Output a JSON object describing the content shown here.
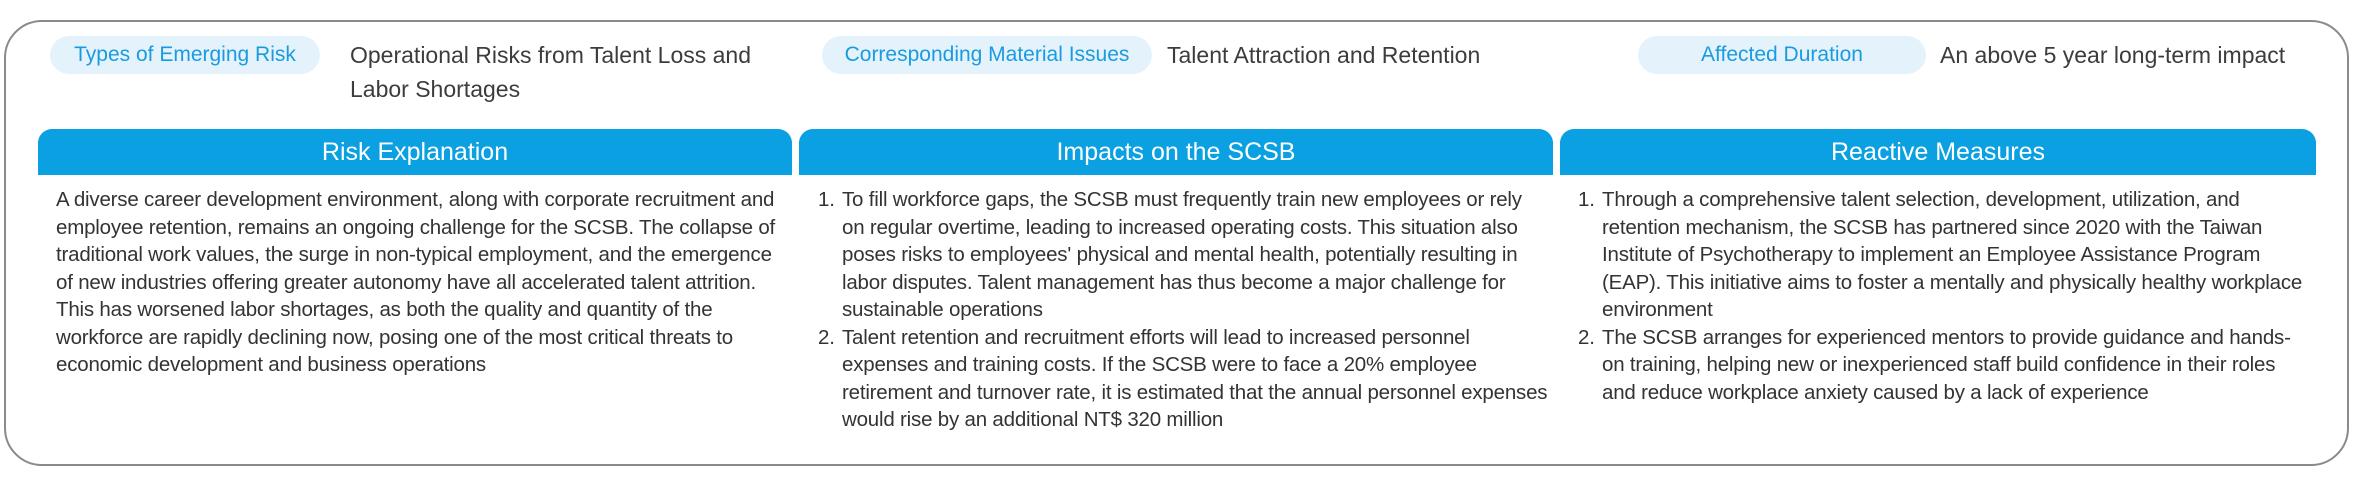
{
  "header": {
    "type_tag": "Types of Emerging Risk",
    "type_value": "Operational Risks from Talent Loss and Labor Shortages",
    "issue_tag": "Corresponding Material Issues",
    "issue_value": "Talent Attraction and Retention",
    "duration_tag": "Affected Duration",
    "duration_value": "An above 5 year long-term impact"
  },
  "columns": {
    "risk": {
      "title": "Risk Explanation",
      "text": "A diverse career development environment, along with corporate recruitment and employee retention, remains an ongoing challenge for the SCSB. The collapse of traditional work values, the surge in non-typical employment, and the emergence of new industries offering greater autonomy have all accelerated talent attrition. This has worsened labor shortages, as both the quality and quantity of the workforce are rapidly declining now, posing one of the most critical threats to economic development and business operations"
    },
    "impacts": {
      "title": "Impacts on the SCSB",
      "items": [
        {
          "num": "1.",
          "text": "To fill workforce gaps, the SCSB must frequently train new employees or rely on regular overtime, leading to increased operating costs. This situation also poses risks to employees' physical and mental health, potentially resulting in labor disputes. Talent management has thus become a major challenge for sustainable operations"
        },
        {
          "num": "2.",
          "text": "Talent retention and recruitment efforts will lead to increased personnel expenses and training costs. If the SCSB were to face a 20% employee retirement and turnover rate, it is estimated that the annual personnel expenses would rise by an additional NT$ 320 million"
        }
      ]
    },
    "measures": {
      "title": "Reactive Measures",
      "items": [
        {
          "num": "1.",
          "text": "Through a comprehensive talent selection, development, utilization, and retention mechanism, the SCSB has partnered since 2020 with the Taiwan Institute of Psychotherapy to implement an Employee Assistance Program (EAP). This initiative aims to foster a mentally and physically healthy workplace environment"
        },
        {
          "num": "2.",
          "text": "The SCSB arranges for experienced mentors to provide guidance and hands-on training, helping new or inexperienced staff build confidence in their roles and reduce workplace anxiety caused by a lack of experience"
        }
      ]
    }
  },
  "colors": {
    "accent": "#0aa0e2",
    "tag_bg": "#e4f2fb",
    "tag_text": "#1a9be0",
    "frame": "#8a8a8a"
  }
}
